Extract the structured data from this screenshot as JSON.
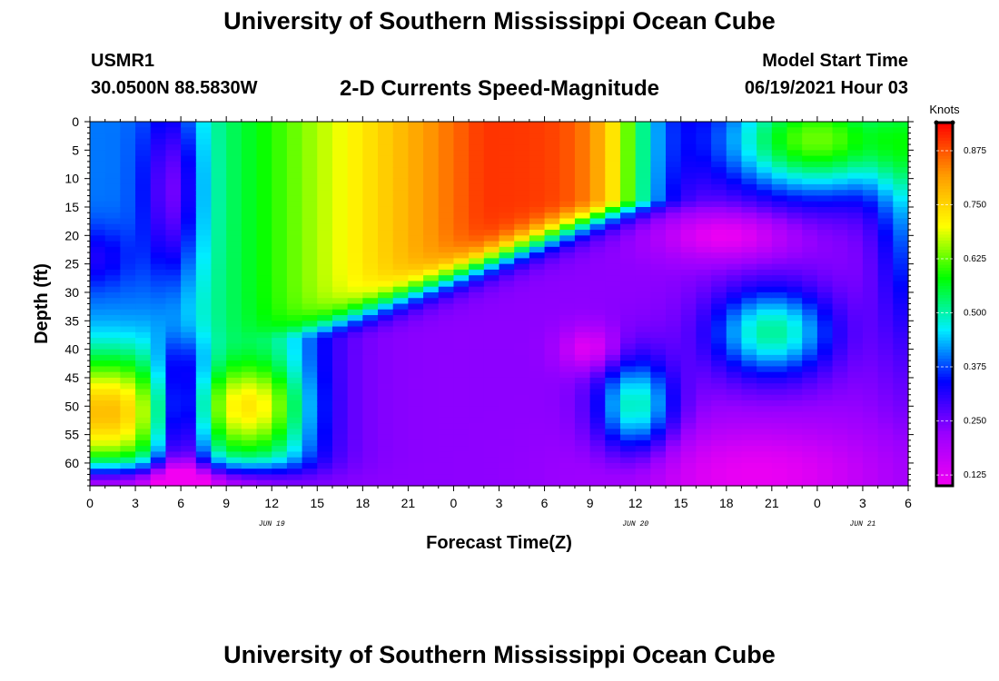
{
  "header": {
    "title": "University of Southern Mississippi Ocean Cube",
    "station": "USMR1",
    "coordinates": "30.0500N  88.5830W",
    "plot_title": "2-D Currents Speed-Magnitude",
    "model_label": "Model Start Time",
    "model_datetime": "06/19/2021 Hour 03"
  },
  "footer": {
    "title": "University of Southern Mississippi Ocean Cube"
  },
  "colors": {
    "scale": [
      "#f200f2",
      "#9a00ff",
      "#0000ff",
      "#00eeff",
      "#00ff00",
      "#ffff00",
      "#ff9900",
      "#ff0000"
    ]
  },
  "chart_data": {
    "type": "heatmap",
    "xlabel": "Forecast Time(Z)",
    "ylabel": "Depth (ft)",
    "x_hours_range": [
      0,
      54
    ],
    "x_tick_labels": [
      "0",
      "3",
      "6",
      "9",
      "12",
      "15",
      "18",
      "21",
      "0",
      "3",
      "6",
      "9",
      "12",
      "15",
      "18",
      "21",
      "0",
      "3",
      "6"
    ],
    "day_labels": [
      {
        "text": "JUN 19",
        "hour": 12
      },
      {
        "text": "JUN 20",
        "hour": 36
      },
      {
        "text": "JUN 21",
        "hour": 51
      }
    ],
    "y_ticks": [
      0,
      5,
      10,
      15,
      20,
      25,
      30,
      35,
      40,
      45,
      50,
      55,
      60
    ],
    "ylim": [
      0,
      64
    ],
    "colorbar": {
      "title": "Knots",
      "tick_labels": [
        "0.125",
        "0.250",
        "0.375",
        "0.500",
        "0.625",
        "0.750",
        "0.875"
      ],
      "tick_values": [
        0.125,
        0.25,
        0.375,
        0.5,
        0.625,
        0.75,
        0.875
      ],
      "range": [
        0.1,
        0.94
      ]
    },
    "features": [
      {
        "region": "surface hours 24-42, depth 0-35 ft",
        "speed": 0.93
      },
      {
        "region": "hours 0-3, depth 45-58 ft",
        "speed": 0.8
      },
      {
        "region": "hours 9-12, depth 45-55 ft",
        "speed": 0.78
      },
      {
        "region": "hours 4-6, depth 0-30 ft",
        "speed": 0.2
      },
      {
        "region": "hour 9, depth 40 ft",
        "speed": 0.12
      },
      {
        "region": "hour 12, depth 45-55 ft",
        "speed": 0.5
      },
      {
        "region": "hour 21, depth 35-40 ft",
        "speed": 0.52
      },
      {
        "region": "hour 18, depth 20 ft",
        "speed": 0.12
      },
      {
        "region": "hours 45-51, depth 0-12 ft",
        "speed": 0.65
      }
    ]
  }
}
